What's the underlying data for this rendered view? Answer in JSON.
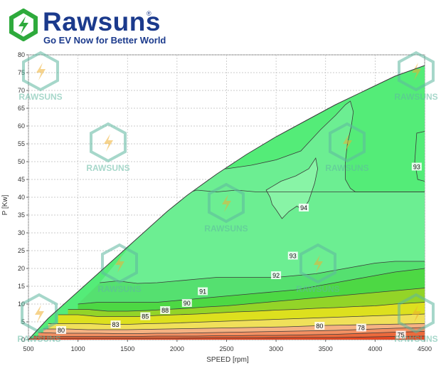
{
  "logo": {
    "brand": "Rawsuns",
    "tagline": "Go EV Now for Better World",
    "reg_mark": "®",
    "colors": {
      "green": "#2eaa3c",
      "blue": "#1b3a8c"
    }
  },
  "watermark": {
    "text": "RAWSUNS",
    "color": "#5fb8a0"
  },
  "chart_data": {
    "type": "contour",
    "xlabel": "SPEED [rpm]",
    "ylabel": "P [Kw]",
    "xlim": [
      500,
      4500
    ],
    "ylim": [
      0,
      80
    ],
    "x_ticks": [
      500,
      1000,
      1500,
      2000,
      2500,
      3000,
      3500,
      4000,
      4500
    ],
    "y_ticks": [
      0,
      5,
      10,
      15,
      20,
      25,
      30,
      35,
      40,
      45,
      50,
      55,
      60,
      65,
      70,
      75,
      80
    ],
    "grid": true,
    "envelope": {
      "x": [
        500,
        700,
        900,
        1100,
        1300,
        1500,
        1700,
        1900,
        2100,
        2400,
        2700,
        3000,
        3300,
        3600,
        3900,
        4200,
        4500
      ],
      "p": [
        0,
        6,
        11,
        16,
        21,
        26,
        31,
        36,
        40.5,
        46.5,
        52,
        57,
        61.5,
        66,
        70,
        74,
        77
      ]
    },
    "contours": [
      {
        "level": 94,
        "x": [
          2900,
          3050,
          3200,
          3330,
          3400,
          3420,
          3390,
          3330,
          3270,
          3210,
          3130,
          3060,
          3000,
          2960,
          2940,
          2900
        ],
        "p": [
          42,
          44.5,
          46,
          48,
          51,
          48,
          44,
          39,
          36.5,
          37.5,
          36,
          34,
          36.5,
          38,
          40,
          42
        ],
        "fill": "#88f4a6",
        "closed": true
      },
      {
        "level": 93,
        "x": [
          1950,
          2200,
          2400,
          2600,
          2800,
          3000,
          3200,
          3400,
          3550,
          3700,
          3850,
          4000,
          4100,
          4500
        ],
        "p": [
          40,
          42,
          41.5,
          42,
          41.5,
          41.5,
          41.5,
          41.5,
          41.5,
          41.5,
          41.5,
          41.5,
          41.5,
          41.5
        ],
        "fill": "#6cee92",
        "closed": false
      },
      {
        "level": 92,
        "x": [
          1220,
          1400,
          1600,
          1800,
          2000,
          2200,
          2400,
          2600,
          2800,
          3000,
          3200,
          3400,
          3600,
          3800,
          4000,
          4200,
          4500
        ],
        "p": [
          16,
          16.5,
          15.8,
          16,
          16.5,
          17,
          17.5,
          17.5,
          17.5,
          17.5,
          18,
          18.5,
          19.5,
          20.5,
          21.5,
          22,
          22
        ],
        "fill": "#5fe46e",
        "closed": false
      },
      {
        "level": 91,
        "x": [
          1000,
          1200,
          1400,
          1600,
          1800,
          2000,
          2200,
          2400,
          2600,
          2800,
          3000,
          3200,
          3400,
          3600,
          3800,
          4000,
          4200,
          4500
        ],
        "p": [
          10,
          10.5,
          10.5,
          10.5,
          10.5,
          11,
          11.5,
          12,
          12.5,
          13,
          13.5,
          14,
          15,
          16,
          17,
          18,
          19,
          20
        ],
        "fill": "#4dd844",
        "closed": false
      },
      {
        "level": 90,
        "x": [
          900,
          1100,
          1300,
          1500,
          1700,
          1900,
          2100,
          2300,
          2500,
          2700,
          2900,
          3100,
          3300,
          3500,
          3700,
          3900,
          4100,
          4300,
          4500
        ],
        "p": [
          8.5,
          8.5,
          8,
          8,
          8.2,
          8.5,
          8.8,
          9.2,
          9.5,
          10,
          10.5,
          11,
          11.5,
          12,
          12.5,
          13,
          13.5,
          14,
          14.5
        ],
        "fill": "#93d428",
        "closed": false
      },
      {
        "level": 88,
        "x": [
          800,
          1000,
          1200,
          1400,
          1600,
          1800,
          2000,
          2200,
          2400,
          2600,
          2800,
          3000,
          3200,
          3400,
          3600,
          3800,
          4000,
          4200,
          4500
        ],
        "p": [
          7,
          7,
          6.5,
          6.5,
          6.5,
          6.8,
          7,
          7.2,
          7.5,
          7.8,
          8,
          8.3,
          8.5,
          8.8,
          9,
          9.3,
          9.5,
          10,
          10.5
        ],
        "fill": "#dde01e",
        "closed": false
      },
      {
        "level": 85,
        "x": [
          700,
          900,
          1100,
          1300,
          1500,
          1700,
          1900,
          2100,
          2300,
          2500,
          2700,
          2900,
          3100,
          3300,
          3500,
          3700,
          3900,
          4100,
          4300,
          4500
        ],
        "p": [
          4.5,
          4.5,
          4.5,
          4.3,
          4.3,
          4.5,
          4.6,
          4.8,
          5,
          5.2,
          5.4,
          5.6,
          5.8,
          6,
          6.2,
          6.4,
          6.6,
          6.8,
          7,
          7.2
        ],
        "fill": "#f0e05a",
        "closed": false
      },
      {
        "level": 83,
        "x": [
          650,
          900,
          1100,
          1300,
          1500,
          1700,
          1900,
          2100,
          2300,
          2500,
          2700,
          2900,
          3100,
          3300,
          3500,
          3700,
          3900,
          4100,
          4300,
          4500
        ],
        "p": [
          3,
          3,
          2.8,
          2.8,
          2.8,
          2.9,
          3,
          3.1,
          3.2,
          3.3,
          3.4,
          3.5,
          3.6,
          3.8,
          4,
          4.1,
          4.2,
          4.3,
          4.4,
          4.5
        ],
        "fill": "#f5b283",
        "closed": false
      },
      {
        "level": 80,
        "x": [
          600,
          800,
          1000,
          1200,
          1400,
          1600,
          1800,
          2000,
          2200,
          2400,
          2600,
          2800,
          3000,
          3200,
          3400,
          3600,
          3800,
          4000,
          4200,
          4500
        ],
        "p": [
          2,
          1.8,
          1.8,
          1.8,
          1.7,
          1.7,
          1.8,
          1.8,
          1.9,
          2,
          2.1,
          2.2,
          2.3,
          2.4,
          2.5,
          2.6,
          2.8,
          3,
          3.2,
          3.4
        ],
        "fill": "#f29063",
        "closed": false
      },
      {
        "level": 78,
        "x": [
          550,
          800,
          1000,
          1200,
          1400,
          1600,
          1800,
          2000,
          2200,
          2400,
          2600,
          2800,
          3000,
          3200,
          3400,
          3600,
          3800,
          4000,
          4200,
          4500
        ],
        "p": [
          1,
          0.9,
          0.9,
          0.9,
          0.9,
          0.9,
          1,
          1,
          1,
          1.1,
          1.1,
          1.2,
          1.2,
          1.3,
          1.4,
          1.5,
          1.7,
          1.9,
          2.1,
          2.3
        ],
        "fill": "#ec6a3c",
        "closed": false
      },
      {
        "level": 75,
        "x": [
          500,
          800,
          1200,
          1600,
          2000,
          2400,
          2800,
          3200,
          3600,
          3800,
          4000,
          4200,
          4500
        ],
        "p": [
          0.4,
          0.4,
          0.4,
          0.4,
          0.4,
          0.5,
          0.5,
          0.6,
          0.6,
          0.7,
          0.8,
          0.9,
          1
        ],
        "fill": "#e34a25",
        "closed": false
      }
    ],
    "base_fill": "#48e068",
    "region_fills": {
      "upper": "#54ec78",
      "mid": "#6cee92",
      "right_strip": "#54ec78"
    },
    "contour_labels": [
      {
        "text": "94",
        "x": 3280,
        "p": 37
      },
      {
        "text": "93",
        "x": 3170,
        "p": 23.5
      },
      {
        "text": "93",
        "x": 4420,
        "p": 48.5
      },
      {
        "text": "92",
        "x": 3000,
        "p": 18
      },
      {
        "text": "91",
        "x": 2260,
        "p": 13.5
      },
      {
        "text": "90",
        "x": 2100,
        "p": 10.2
      },
      {
        "text": "88",
        "x": 1880,
        "p": 8.2
      },
      {
        "text": "85",
        "x": 1680,
        "p": 6.5
      },
      {
        "text": "83",
        "x": 1380,
        "p": 4.2
      },
      {
        "text": "80",
        "x": 3440,
        "p": 3.8
      },
      {
        "text": "78",
        "x": 3860,
        "p": 3.3
      },
      {
        "text": "80",
        "x": 830,
        "p": 2.6
      },
      {
        "text": "75",
        "x": 4260,
        "p": 1.3
      }
    ]
  }
}
